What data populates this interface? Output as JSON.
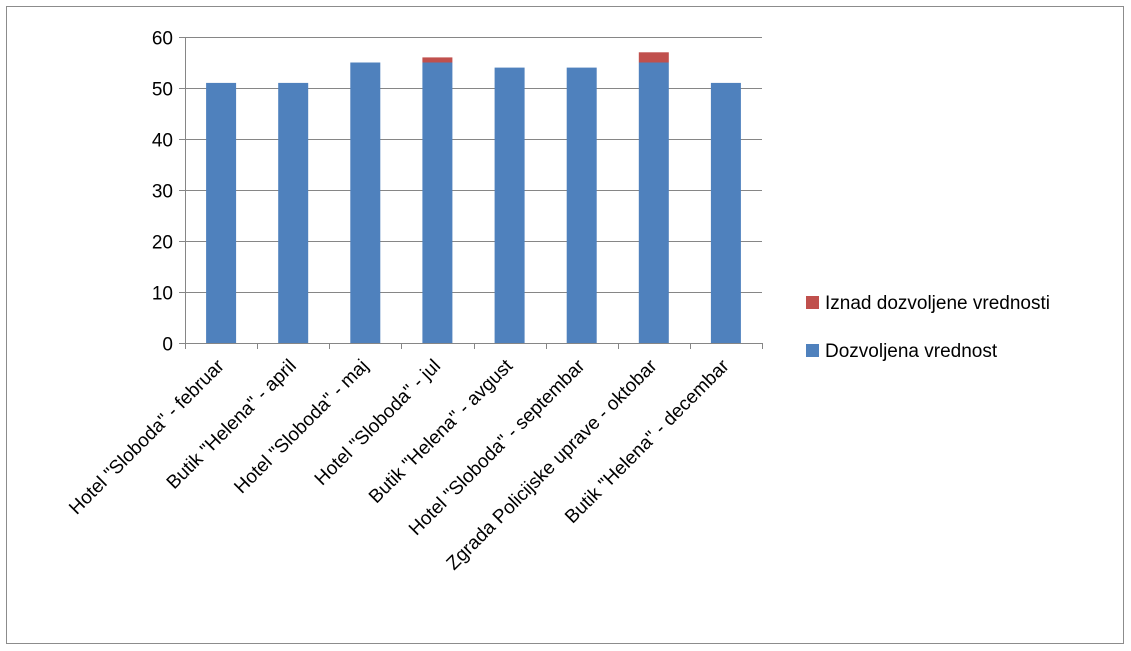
{
  "colors": {
    "allowed": "#4f81bd",
    "above": "#c0504d",
    "grid": "#868686",
    "frame": "#8c8c8c"
  },
  "chart_data": {
    "type": "bar",
    "stacked": true,
    "categories": [
      "Hotel \"Sloboda\" - februar",
      "Butik \"Helena\" - april",
      "Hotel \"Sloboda\" - maj",
      "Hotel \"Sloboda\" - jul",
      "Butik \"Helena\" - avgust",
      "Hotel \"Sloboda\" - septembar",
      "Zgrada Policijske uprave - oktobar",
      "Butik \"Helena\" - decembar"
    ],
    "series": [
      {
        "name": "Dozvoljena vrednost",
        "color": "#4f81bd",
        "values": [
          51,
          51,
          55,
          55,
          54,
          54,
          55,
          51
        ]
      },
      {
        "name": "Iznad dozvoljene vrednosti",
        "color": "#c0504d",
        "values": [
          0,
          0,
          0,
          1,
          0,
          0,
          2,
          0
        ]
      }
    ],
    "ylim": [
      0,
      60
    ],
    "yticks": [
      0,
      10,
      20,
      30,
      40,
      50,
      60
    ],
    "grid": true,
    "legend_position": "right",
    "legend_order": [
      "Iznad dozvoljene vrednosti",
      "Dozvoljena vrednost"
    ],
    "title": "",
    "xlabel": "",
    "ylabel": ""
  }
}
